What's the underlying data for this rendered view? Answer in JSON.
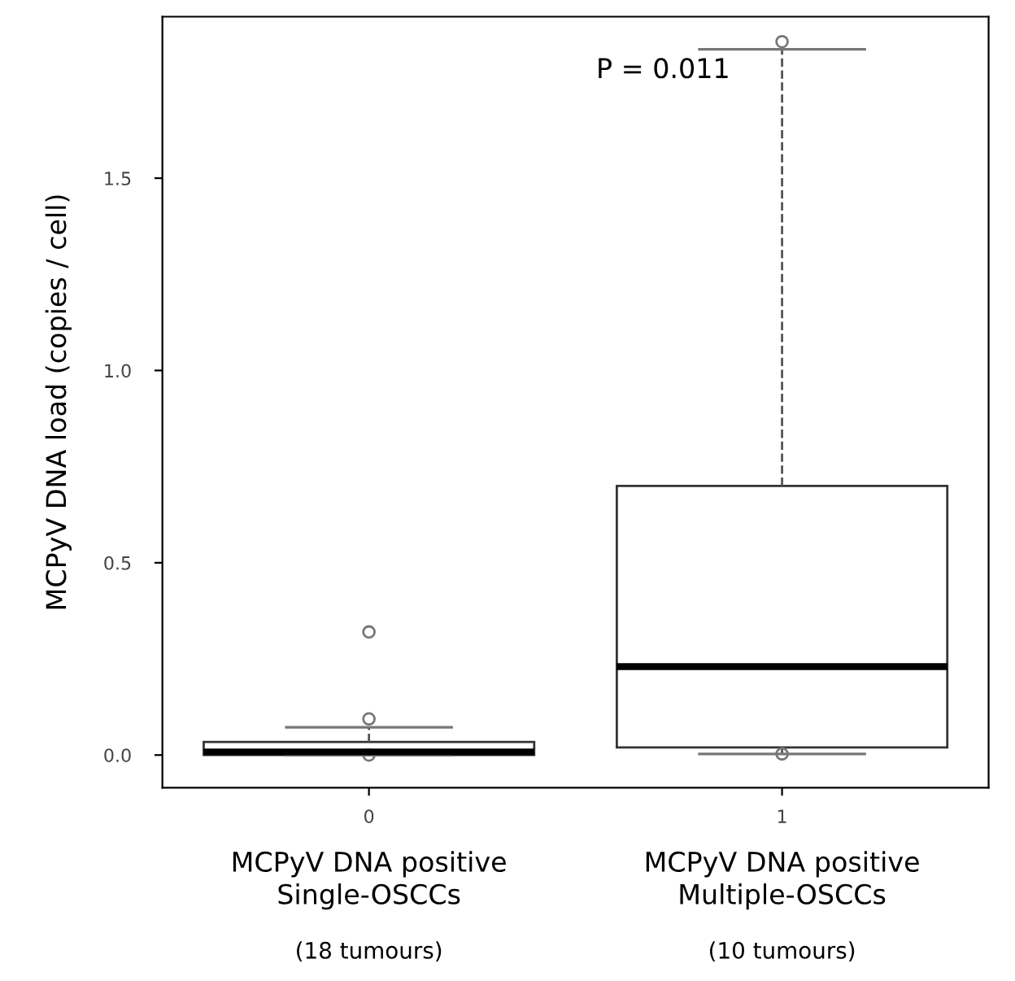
{
  "chart_data": {
    "type": "box",
    "categories": [
      "0",
      "1"
    ],
    "ylabel": "MCPyV DNA load (copies / cell)",
    "boxes": [
      {
        "low": 0,
        "q1": 0,
        "median": 0.008,
        "q3": 0.034,
        "high": 0.072,
        "outliers": [
          0.32,
          0.094,
          0
        ]
      },
      {
        "low": 0.003,
        "q1": 0.02,
        "median": 0.23,
        "q3": 0.7,
        "high": 1.835,
        "outliers": [
          1.855,
          0.003
        ]
      }
    ],
    "ylim": [
      -0.085,
      1.92
    ],
    "yticks": [
      {
        "value": 0,
        "label": "0.0"
      },
      {
        "value": 0.5,
        "label": "0.5"
      },
      {
        "value": 1,
        "label": "1.0"
      },
      {
        "value": 1.5,
        "label": "1.5"
      }
    ],
    "line_style": "dashed",
    "grid": false,
    "annotations": [
      {
        "text": "P = 0.011",
        "x": "1",
        "y": 1.78
      },
      "MCPyV DNA positive\nSingle-OSCCs",
      "(18 tumours)",
      "MCPyV DNA positive\nMultiple-OSCCs",
      "(10 tumours)"
    ]
  }
}
